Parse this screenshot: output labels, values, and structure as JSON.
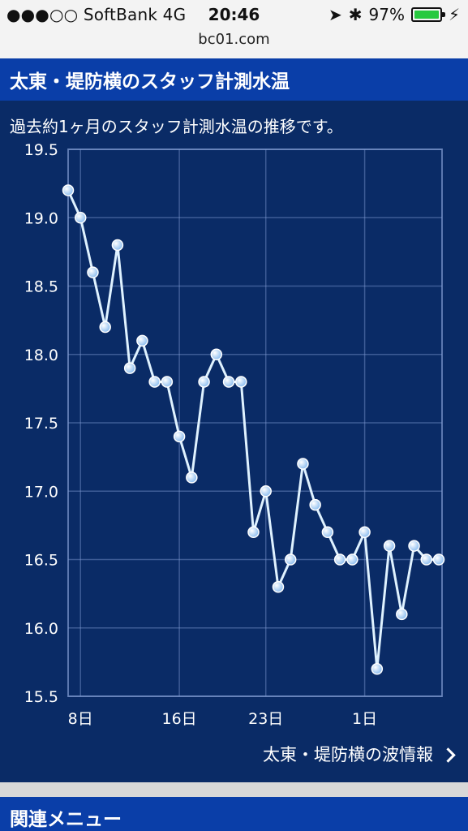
{
  "status": {
    "carrier": "●●●○○ SoftBank 4G",
    "time": "20:46",
    "battery": "97%",
    "url": "bc01.com"
  },
  "page": {
    "title": "太東・堤防横のスタッフ計測水温",
    "description": "過去約1ヶ月のスタッフ計測水温の推移です。",
    "link_label": "太東・堤防横の波情報",
    "related_menu": "関連メニュー"
  },
  "colors": {
    "header": "#0a3ea8",
    "background": "#0a2b66",
    "grid": "#7f9ad0",
    "line": "#dff2ff",
    "separator": "#d8d8d8"
  },
  "chart_data": {
    "type": "line",
    "title": "",
    "xlabel": "",
    "ylabel": "",
    "ylim": [
      15.5,
      19.5
    ],
    "yticks": [
      "19.5",
      "19.0",
      "18.5",
      "18.0",
      "17.5",
      "17.0",
      "16.5",
      "16.0",
      "15.5"
    ],
    "xticks": [
      "8日",
      "16日",
      "23日",
      "1日"
    ],
    "x_tick_positions": [
      8,
      16,
      23,
      31
    ],
    "series": [
      {
        "values": [
          19.2,
          19.0,
          18.6,
          18.2,
          18.8,
          17.9,
          18.1,
          17.8,
          17.8,
          17.4,
          17.1,
          17.8,
          18.0,
          17.8,
          17.8,
          16.7,
          17.0,
          16.3,
          16.5,
          17.2,
          16.9,
          16.7,
          16.5,
          16.5,
          16.7,
          15.7,
          16.6,
          16.1,
          16.6,
          16.5,
          16.5
        ],
        "x": [
          7,
          8,
          9,
          10,
          11,
          12,
          13,
          14,
          15,
          16,
          17,
          18,
          19,
          20,
          21,
          22,
          23,
          24,
          25,
          26,
          27,
          28,
          29,
          30,
          31,
          32,
          33,
          34,
          35,
          36,
          37
        ]
      }
    ],
    "grid": true,
    "legend": "none"
  }
}
